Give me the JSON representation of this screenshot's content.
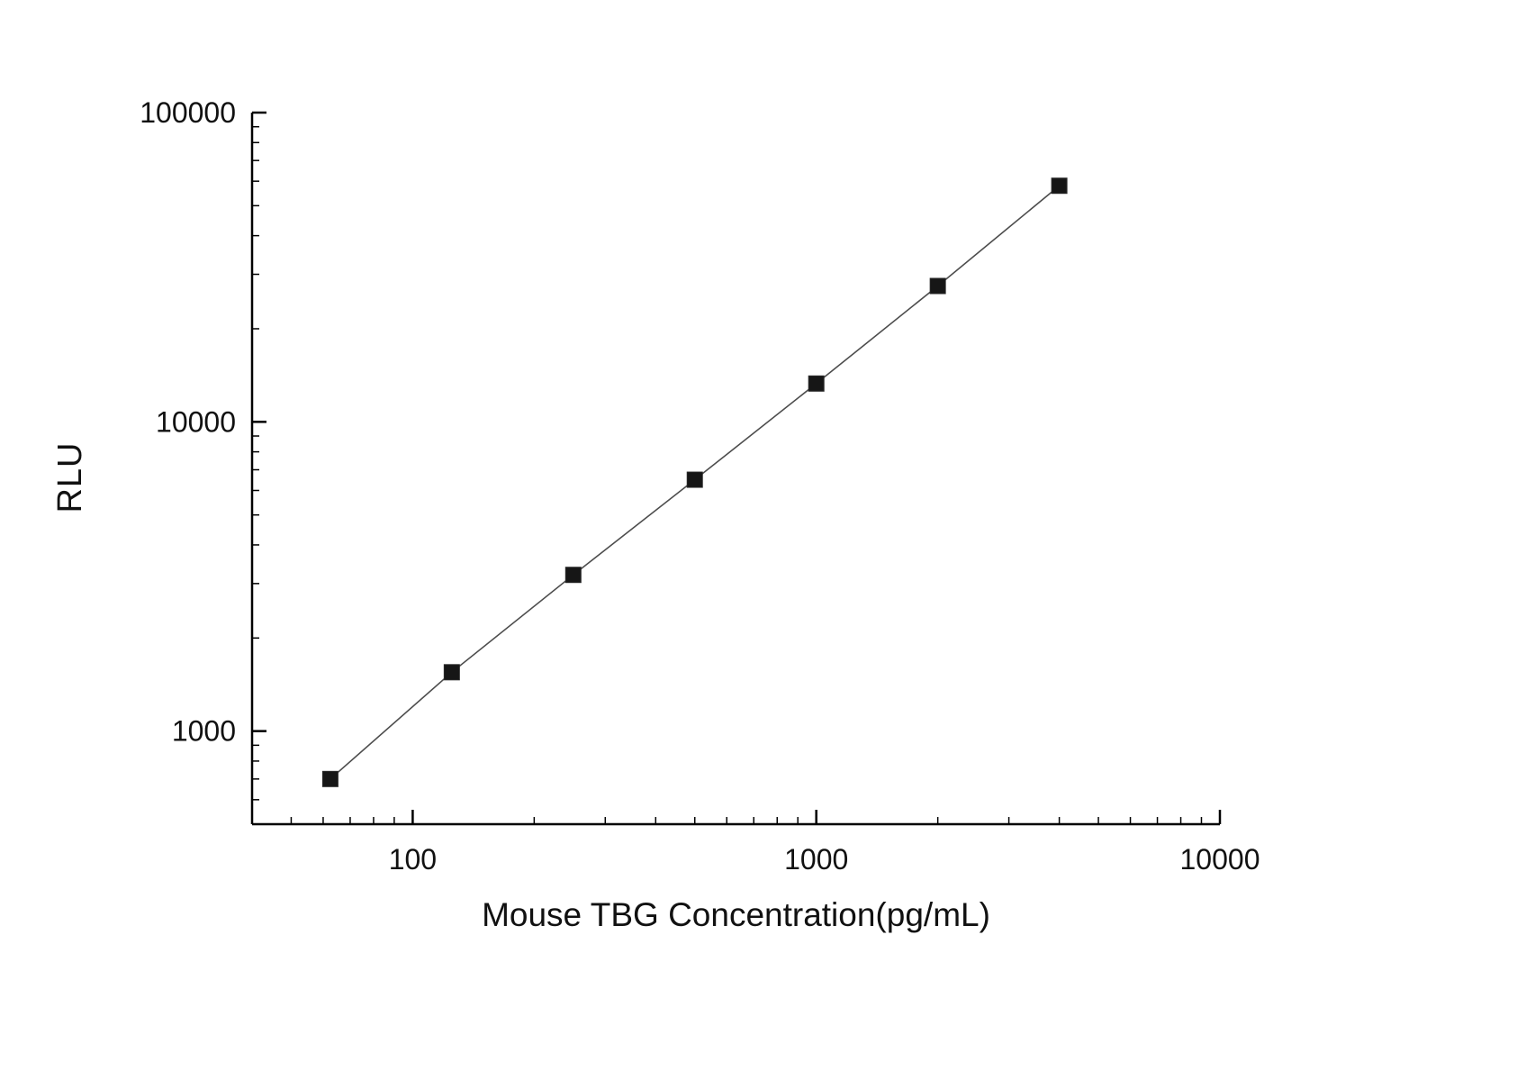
{
  "chart_data": {
    "type": "line",
    "title": "",
    "xlabel": "Mouse TBG Concentration(pg/mL)",
    "ylabel": "RLU",
    "x": [
      62.5,
      125,
      250,
      500,
      1000,
      2000,
      4000
    ],
    "y": [
      700,
      1550,
      3200,
      6500,
      13300,
      27500,
      58000
    ],
    "x_scale": "log",
    "y_scale": "log",
    "xlim": [
      40,
      10000
    ],
    "ylim": [
      500,
      100000
    ],
    "x_ticks": [
      100,
      1000,
      10000
    ],
    "y_ticks": [
      1000,
      10000,
      100000
    ],
    "marker": "square",
    "marker_color": "#161616",
    "line_color": "#4d4d4d",
    "axis_color": "#000000",
    "grid": "off",
    "legend": "none"
  }
}
